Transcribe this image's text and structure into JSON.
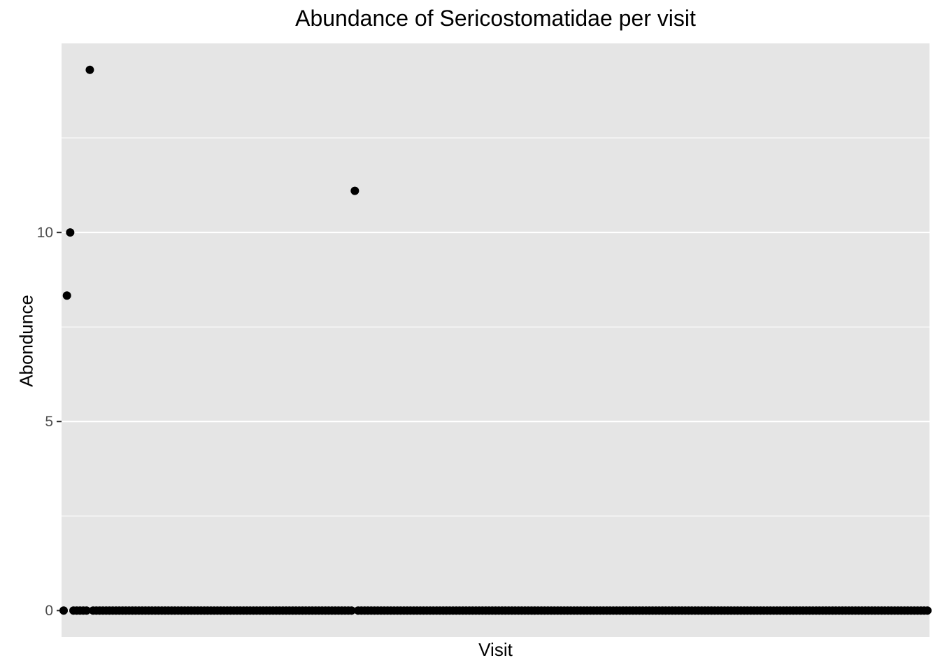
{
  "chart_data": {
    "type": "scatter",
    "title": "Abundance of Sericostomatidae per visit",
    "xlabel": "Visit",
    "ylabel": "Abondunce",
    "ylim": [
      -0.7,
      15
    ],
    "yticks": [
      0,
      5,
      10
    ],
    "y_tick_labels": [
      "0",
      "5",
      "10"
    ],
    "x_tick_labels": [],
    "grid": true,
    "background": "#e5e5e5",
    "gridline_color": "#ffffff",
    "point_color": "#000000",
    "x_count": 265,
    "points": [
      {
        "x": 2,
        "y": 8.33
      },
      {
        "x": 3,
        "y": 10
      },
      {
        "x": 9,
        "y": 14.3
      },
      {
        "x": 90,
        "y": 11.1
      }
    ],
    "zero_valued_visits": "all remaining visits (1–265) have abundance 0"
  }
}
